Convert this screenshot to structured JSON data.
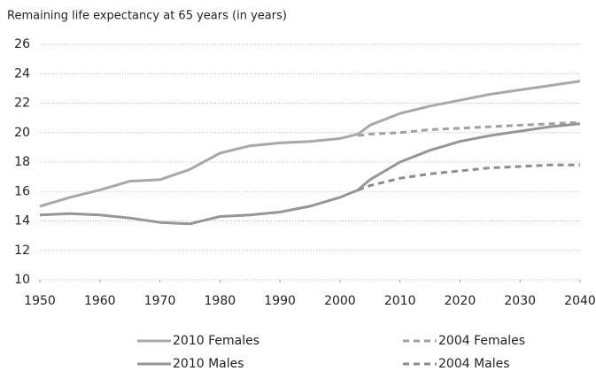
{
  "chart_data": {
    "type": "line",
    "title": "Remaining life expectancy at 65 years (in years)",
    "x": [
      1950,
      1955,
      1960,
      1965,
      1970,
      1975,
      1980,
      1985,
      1990,
      1995,
      2000,
      2003,
      2005,
      2010,
      2015,
      2020,
      2025,
      2030,
      2035,
      2040
    ],
    "series": [
      {
        "name": "2010 Females",
        "color": "#a8a8a8",
        "dashed": false,
        "values": [
          15.0,
          15.6,
          16.1,
          16.7,
          16.8,
          17.5,
          18.6,
          19.1,
          19.3,
          19.4,
          19.6,
          19.9,
          20.5,
          21.3,
          21.8,
          22.2,
          22.6,
          22.9,
          23.2,
          23.5
        ]
      },
      {
        "name": "2004 Females",
        "color": "#a0a0a0",
        "dashed": true,
        "values": [
          null,
          null,
          null,
          null,
          null,
          null,
          null,
          null,
          null,
          null,
          null,
          19.8,
          19.9,
          20.0,
          20.2,
          20.3,
          20.4,
          20.5,
          20.6,
          20.7
        ]
      },
      {
        "name": "2010 Males",
        "color": "#969696",
        "dashed": false,
        "values": [
          14.4,
          14.5,
          14.4,
          14.2,
          13.9,
          13.8,
          14.3,
          14.4,
          14.6,
          15.0,
          15.6,
          16.1,
          16.8,
          18.0,
          18.8,
          19.4,
          19.8,
          20.1,
          20.4,
          20.6
        ]
      },
      {
        "name": "2004 Males",
        "color": "#8c8c8c",
        "dashed": true,
        "values": [
          null,
          null,
          null,
          null,
          null,
          null,
          null,
          null,
          null,
          null,
          null,
          16.1,
          16.4,
          16.9,
          17.2,
          17.4,
          17.6,
          17.7,
          17.8,
          17.8
        ]
      }
    ],
    "xlim": [
      1950,
      2040
    ],
    "xticks": [
      1950,
      1960,
      1970,
      1980,
      1990,
      2000,
      2010,
      2020,
      2030,
      2040
    ],
    "ylim": [
      10,
      26
    ],
    "yticks": [
      10,
      12,
      14,
      16,
      18,
      20,
      22,
      24,
      26
    ],
    "grid": true,
    "legend": "bottom"
  }
}
